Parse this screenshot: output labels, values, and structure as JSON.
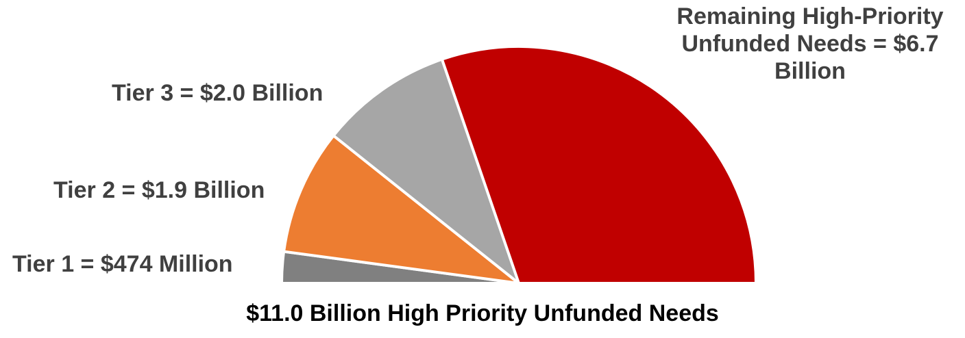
{
  "chart_data": {
    "type": "pie",
    "variant": "half-pie",
    "title": "$11.0 Billion High Priority Unfunded Needs",
    "slices": [
      {
        "name": "Tier 1",
        "value": 0.474,
        "label": "Tier 1 = $474 Million",
        "color": "#808080"
      },
      {
        "name": "Tier 2",
        "value": 1.9,
        "label": "Tier 2 = $1.9 Billion",
        "color": "#ED7D31"
      },
      {
        "name": "Tier 3",
        "value": 2.0,
        "label": "Tier 3 = $2.0 Billion",
        "color": "#A6A6A6"
      },
      {
        "name": "Remaining High-Priority Unfunded Needs",
        "value": 6.7,
        "label": "Remaining High-Priority Unfunded Needs = $6.7 Billion",
        "color": "#C00000"
      }
    ],
    "units": "Billion"
  }
}
